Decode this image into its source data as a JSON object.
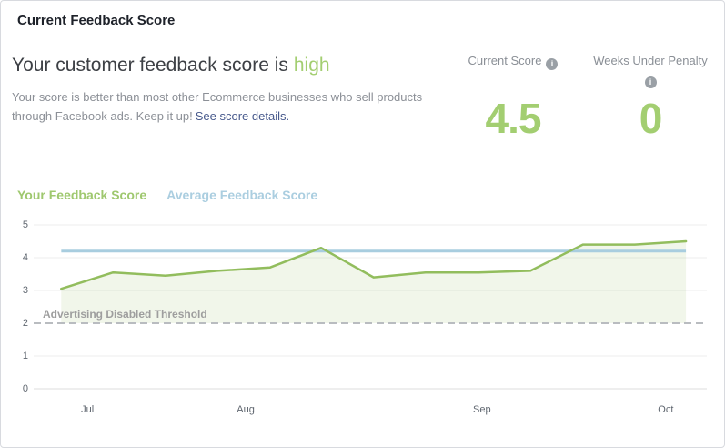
{
  "panel": {
    "title": "Current Feedback Score"
  },
  "headline": {
    "prefix": "Your customer feedback score is",
    "level": "high"
  },
  "description": {
    "text": "Your score is better than most other Ecommerce businesses who sell products through Facebook ads. Keep it up!",
    "link": "See score details."
  },
  "stats": {
    "current_score": {
      "label": "Current Score",
      "value": "4.5"
    },
    "weeks_under_penalty": {
      "label": "Weeks Under Penalty",
      "value": "0"
    }
  },
  "icons": {
    "info": "i"
  },
  "colors": {
    "score_green": "#a3ce71",
    "line_green": "#92bd5d",
    "average_blue": "#a8cddf",
    "threshold_gray": "#b9bcc0"
  },
  "chart_data": {
    "type": "line",
    "title": "",
    "xlabel": "",
    "ylabel": "",
    "ylim": [
      0,
      5
    ],
    "yticks": [
      5,
      4,
      3,
      2,
      1,
      0
    ],
    "grid": "horizontal",
    "legend_position": "top-left",
    "x_axis_labels": [
      {
        "label": "Jul",
        "x_pct": 8.0
      },
      {
        "label": "Aug",
        "x_pct": 31.5
      },
      {
        "label": "Sep",
        "x_pct": 66.6
      },
      {
        "label": "Oct",
        "x_pct": 93.9
      }
    ],
    "series": [
      {
        "name": "Your Feedback Score",
        "type": "line",
        "color": "#92bd5d",
        "fill_color": "rgba(146,189,93,0.13)",
        "fill_to_value": 2,
        "points": [
          {
            "x": 4.1,
            "y": 3.05
          },
          {
            "x": 11.8,
            "y": 3.55
          },
          {
            "x": 19.6,
            "y": 3.45
          },
          {
            "x": 27.3,
            "y": 3.6
          },
          {
            "x": 35.1,
            "y": 3.7
          },
          {
            "x": 42.7,
            "y": 4.3
          },
          {
            "x": 50.5,
            "y": 3.4
          },
          {
            "x": 58.2,
            "y": 3.55
          },
          {
            "x": 66.1,
            "y": 3.55
          },
          {
            "x": 73.8,
            "y": 3.6
          },
          {
            "x": 81.6,
            "y": 4.4
          },
          {
            "x": 89.3,
            "y": 4.4
          },
          {
            "x": 96.9,
            "y": 4.5
          }
        ]
      },
      {
        "name": "Average Feedback Score",
        "type": "constant-line",
        "color": "#a8cddf",
        "value": 4.2,
        "x_start_pct": 4.1,
        "x_end_pct": 96.9
      }
    ],
    "threshold": {
      "label": "Advertising Disabled Threshold",
      "value": 2,
      "line_color": "#b9bcc0",
      "style": "dashed"
    }
  }
}
